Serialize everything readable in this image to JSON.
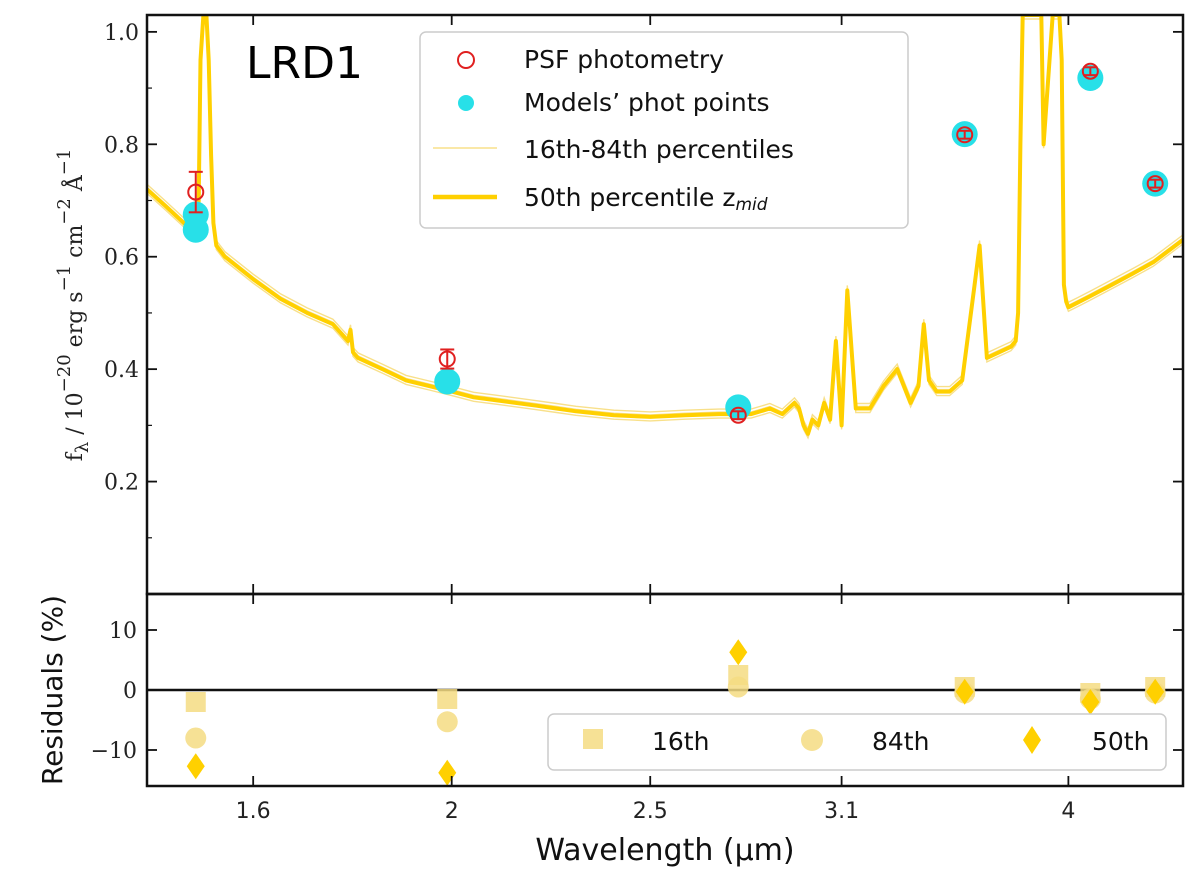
{
  "colors": {
    "model": "#FFD000",
    "model_light": "#F8E08A",
    "photometry": "#E02020",
    "phot_points": "#28E0E8",
    "residual_light": "#F5DC82",
    "frame": "#111111"
  },
  "label_box": "LRD1",
  "chart_data": [
    {
      "type": "line",
      "panel": "top",
      "title": "LRD1",
      "xlabel": "",
      "ylabel_parts": {
        "f": "f",
        "lambda": "λ",
        "slash": " / 10",
        "exp20": "−20",
        "erg": " erg s",
        "exp1a": "−1",
        "cm": " cm",
        "exp2": "−2",
        "ang": " Å",
        "exp1b": "−1"
      },
      "xscale": "log",
      "xlim": [
        1.42,
        4.55
      ],
      "ylim": [
        0.0,
        1.03
      ],
      "yticks": [
        0.2,
        0.4,
        0.6,
        0.8,
        1.0
      ],
      "ytick_labels": [
        "0.2",
        "0.4",
        "0.6",
        "0.8",
        "1.0"
      ],
      "legend": {
        "location": "upper-center",
        "entries": [
          "PSF photometry",
          "Models’ phot points",
          "16th-84th percentiles",
          "50th percentile z"
        ],
        "subscript": "mid"
      },
      "series": [
        {
          "name": "50th percentile z_mid",
          "style": "line",
          "x": [
            1.42,
            1.45,
            1.48,
            1.5,
            1.505,
            1.508,
            1.513,
            1.518,
            1.522,
            1.526,
            1.53,
            1.535,
            1.55,
            1.6,
            1.65,
            1.7,
            1.75,
            1.78,
            1.785,
            1.79,
            1.8,
            1.85,
            1.9,
            1.95,
            2.0,
            2.05,
            2.1,
            2.2,
            2.25,
            2.3,
            2.4,
            2.5,
            2.6,
            2.7,
            2.8,
            2.86,
            2.9,
            2.94,
            2.955,
            2.97,
            2.985,
            3.0,
            3.02,
            3.04,
            3.06,
            3.08,
            3.1,
            3.12,
            3.15,
            3.2,
            3.25,
            3.3,
            3.35,
            3.38,
            3.4,
            3.42,
            3.45,
            3.5,
            3.55,
            3.6,
            3.62,
            3.65,
            3.7,
            3.75,
            3.77,
            3.78,
            3.79,
            3.8,
            3.88,
            3.89,
            3.93,
            3.96,
            3.97,
            3.98,
            3.99,
            4.0,
            4.05,
            4.1,
            4.2,
            4.3,
            4.4,
            4.55
          ],
          "y": [
            0.72,
            0.69,
            0.66,
            0.64,
            0.7,
            0.95,
            1.03,
            1.03,
            0.95,
            0.78,
            0.66,
            0.62,
            0.6,
            0.56,
            0.525,
            0.5,
            0.48,
            0.45,
            0.47,
            0.43,
            0.42,
            0.4,
            0.38,
            0.37,
            0.36,
            0.35,
            0.345,
            0.335,
            0.33,
            0.325,
            0.318,
            0.315,
            0.318,
            0.32,
            0.32,
            0.33,
            0.32,
            0.34,
            0.33,
            0.3,
            0.285,
            0.31,
            0.3,
            0.34,
            0.31,
            0.45,
            0.3,
            0.54,
            0.33,
            0.33,
            0.37,
            0.4,
            0.34,
            0.37,
            0.48,
            0.38,
            0.36,
            0.36,
            0.38,
            0.55,
            0.62,
            0.42,
            0.43,
            0.44,
            0.45,
            0.5,
            0.8,
            1.03,
            1.03,
            0.8,
            1.03,
            1.03,
            0.95,
            0.55,
            0.52,
            0.51,
            0.52,
            0.53,
            0.55,
            0.57,
            0.59,
            0.63
          ]
        },
        {
          "name": "PSF photometry",
          "style": "scatter-open",
          "x": [
            1.5,
            1.99,
            2.76,
            3.56,
            4.1,
            4.41
          ],
          "y": [
            0.715,
            0.418,
            0.318,
            0.817,
            0.93,
            0.73
          ],
          "yerr": [
            0.036,
            0.017,
            0.007,
            0.007,
            0.007,
            0.007
          ]
        },
        {
          "name": "Models’ phot points",
          "style": "scatter-filled",
          "x": [
            1.5,
            1.5,
            1.99,
            2.76,
            3.56,
            4.1,
            4.41
          ],
          "y": [
            0.675,
            0.648,
            0.378,
            0.332,
            0.818,
            0.918,
            0.73
          ]
        }
      ]
    },
    {
      "type": "scatter",
      "panel": "bottom",
      "xlabel": "Wavelength (μm)",
      "ylabel": "Residuals (%)",
      "xscale": "log",
      "xlim": [
        1.42,
        4.55
      ],
      "ylim": [
        -16,
        16
      ],
      "xticks": [
        1.6,
        2,
        2.5,
        3.1,
        4
      ],
      "xtick_labels": [
        "1.6",
        "2",
        "2.5",
        "3.1",
        "4"
      ],
      "yticks": [
        -10,
        0,
        10
      ],
      "ytick_labels": [
        "−10",
        "0",
        "10"
      ],
      "legend": {
        "location": "lower-right",
        "entries": [
          "16th",
          "84th",
          "50th"
        ]
      },
      "series": [
        {
          "name": "16th",
          "marker": "square",
          "x": [
            1.5,
            1.99,
            2.76,
            3.56,
            4.1,
            4.41
          ],
          "y": [
            -2,
            -1.5,
            2.5,
            0.5,
            -0.5,
            0.5
          ]
        },
        {
          "name": "84th",
          "marker": "circle",
          "x": [
            1.5,
            1.99,
            2.76,
            3.56,
            4.1,
            4.41
          ],
          "y": [
            -8,
            -5.3,
            0.5,
            -0.5,
            -1.5,
            -0.5
          ]
        },
        {
          "name": "50th",
          "marker": "diamond",
          "x": [
            1.5,
            1.99,
            2.76,
            3.56,
            4.1,
            4.41
          ],
          "y": [
            -12.7,
            -13.8,
            6.3,
            -0.3,
            -2.0,
            -0.3
          ]
        }
      ]
    }
  ]
}
